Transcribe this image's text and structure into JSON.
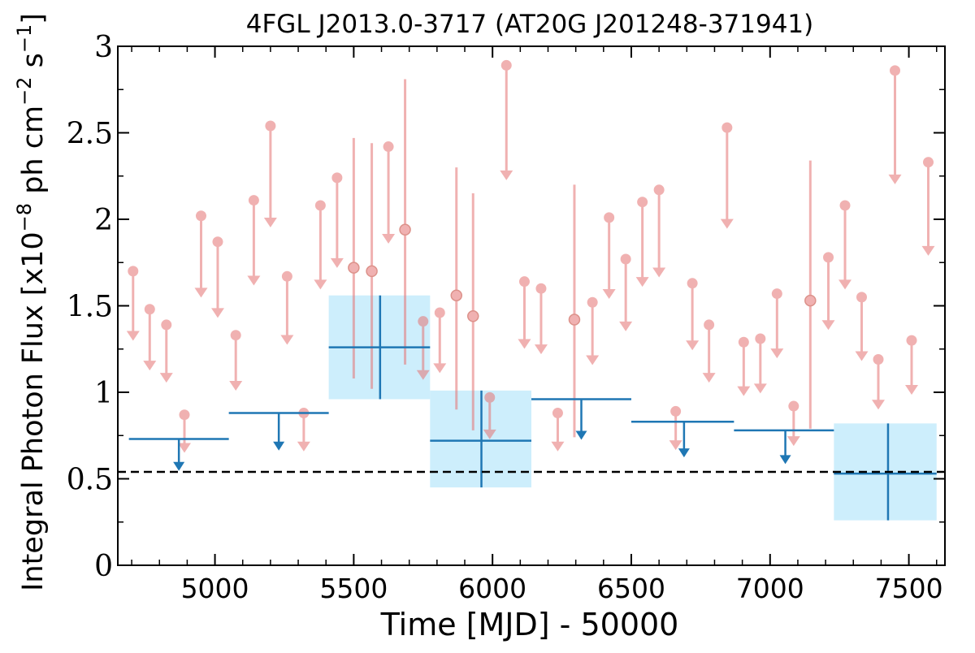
{
  "chart_data": {
    "type": "scatter",
    "title": "4FGL J2013.0-3717 (AT20G J201248-371941)",
    "xlabel": "Time [MJD] - 50000",
    "ylabel_main": "Integral Photon Flux [x10",
    "ylabel_exp1": "−8",
    "ylabel_mid": " ph cm",
    "ylabel_exp2": "−2",
    "ylabel_mid2": " s",
    "ylabel_exp3": "−1",
    "ylabel_end": "]",
    "xlim": [
      4650,
      7630
    ],
    "ylim": [
      0,
      3.0
    ],
    "xticks": [
      5000,
      5500,
      6000,
      6500,
      7000,
      7500
    ],
    "xtick_labels": [
      "5000",
      "5500",
      "6000",
      "6500",
      "7000",
      "7500"
    ],
    "yticks": [
      0,
      0.5,
      1,
      1.5,
      2,
      2.5,
      3
    ],
    "ytick_labels": [
      "0",
      "0.5",
      "1",
      "1.5",
      "2",
      "2.5",
      "3"
    ],
    "reference_line": {
      "y": 0.54,
      "style": "dashed",
      "color": "#000000"
    },
    "colors": {
      "short_bin": "#e57373",
      "long_bin": "#1f77b4",
      "long_bin_band": "#cdeefc"
    },
    "short_bins": {
      "upper_limits": [
        {
          "x": 4705,
          "y": 1.7
        },
        {
          "x": 4765,
          "y": 1.48
        },
        {
          "x": 4825,
          "y": 1.39
        },
        {
          "x": 4890,
          "y": 0.87
        },
        {
          "x": 4950,
          "y": 2.02
        },
        {
          "x": 5010,
          "y": 1.87
        },
        {
          "x": 5075,
          "y": 1.33
        },
        {
          "x": 5140,
          "y": 2.11
        },
        {
          "x": 5200,
          "y": 2.54
        },
        {
          "x": 5260,
          "y": 1.67
        },
        {
          "x": 5320,
          "y": 0.88
        },
        {
          "x": 5380,
          "y": 2.08
        },
        {
          "x": 5440,
          "y": 2.24
        },
        {
          "x": 5625,
          "y": 2.42
        },
        {
          "x": 5750,
          "y": 1.41
        },
        {
          "x": 5810,
          "y": 1.46
        },
        {
          "x": 5990,
          "y": 0.97
        },
        {
          "x": 6050,
          "y": 2.89
        },
        {
          "x": 6115,
          "y": 1.64
        },
        {
          "x": 6175,
          "y": 1.6
        },
        {
          "x": 6235,
          "y": 0.88
        },
        {
          "x": 6360,
          "y": 1.52
        },
        {
          "x": 6420,
          "y": 2.01
        },
        {
          "x": 6480,
          "y": 1.77
        },
        {
          "x": 6540,
          "y": 2.1
        },
        {
          "x": 6600,
          "y": 2.17
        },
        {
          "x": 6660,
          "y": 0.89
        },
        {
          "x": 6720,
          "y": 1.63
        },
        {
          "x": 6780,
          "y": 1.39
        },
        {
          "x": 6845,
          "y": 2.53
        },
        {
          "x": 6905,
          "y": 1.29
        },
        {
          "x": 6965,
          "y": 1.31
        },
        {
          "x": 7025,
          "y": 1.57
        },
        {
          "x": 7085,
          "y": 0.92
        },
        {
          "x": 7210,
          "y": 1.78
        },
        {
          "x": 7270,
          "y": 2.08
        },
        {
          "x": 7330,
          "y": 1.55
        },
        {
          "x": 7390,
          "y": 1.19
        },
        {
          "x": 7450,
          "y": 2.86
        },
        {
          "x": 7510,
          "y": 1.3
        },
        {
          "x": 7570,
          "y": 2.33
        }
      ],
      "detections": [
        {
          "x": 5500,
          "y": 1.72,
          "ylow": 1.08,
          "yhigh": 2.47
        },
        {
          "x": 5565,
          "y": 1.7,
          "ylow": 1.02,
          "yhigh": 2.44
        },
        {
          "x": 5685,
          "y": 1.94,
          "ylow": 1.16,
          "yhigh": 2.81
        },
        {
          "x": 5870,
          "y": 1.56,
          "ylow": 0.9,
          "yhigh": 2.3
        },
        {
          "x": 5930,
          "y": 1.44,
          "ylow": 0.78,
          "yhigh": 2.15
        },
        {
          "x": 6295,
          "y": 1.42,
          "ylow": 0.74,
          "yhigh": 2.2
        },
        {
          "x": 7145,
          "y": 1.53,
          "ylow": 0.79,
          "yhigh": 2.34
        }
      ]
    },
    "long_bins": {
      "upper_limits": [
        {
          "x": 4870,
          "xlow": 4690,
          "xhigh": 5050,
          "y": 0.73
        },
        {
          "x": 5230,
          "xlow": 5050,
          "xhigh": 5410,
          "y": 0.88
        },
        {
          "x": 6320,
          "xlow": 6140,
          "xhigh": 6500,
          "y": 0.96
        },
        {
          "x": 6690,
          "xlow": 6500,
          "xhigh": 6870,
          "y": 0.83
        },
        {
          "x": 7055,
          "xlow": 6870,
          "xhigh": 7230,
          "y": 0.78
        }
      ],
      "detections": [
        {
          "x": 5595,
          "xlow": 5410,
          "xhigh": 5775,
          "y": 1.26,
          "ylow": 0.96,
          "yhigh": 1.56
        },
        {
          "x": 5960,
          "xlow": 5775,
          "xhigh": 6140,
          "y": 0.72,
          "ylow": 0.45,
          "yhigh": 1.01
        },
        {
          "x": 7425,
          "xlow": 7230,
          "xhigh": 7600,
          "y": 0.53,
          "ylow": 0.26,
          "yhigh": 0.82
        }
      ]
    }
  }
}
